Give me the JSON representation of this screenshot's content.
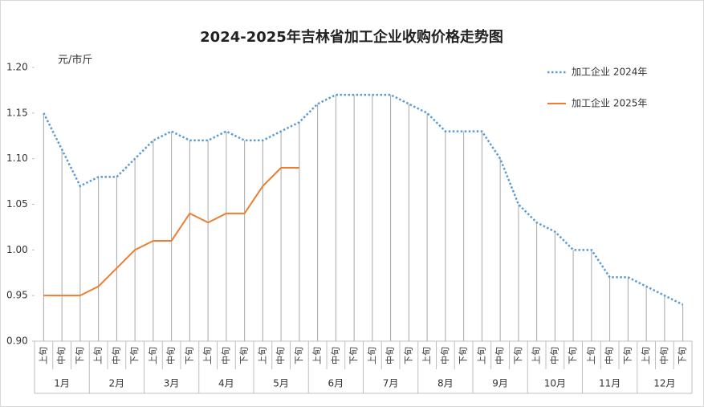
{
  "chart_data": {
    "type": "line",
    "title": "2024-2025年吉林省加工企业收购价格走势图",
    "y_label": "元/市斤",
    "categories": [
      "上旬",
      "中旬",
      "下旬",
      "上旬",
      "中旬",
      "下旬",
      "上旬",
      "中旬",
      "下旬",
      "上旬",
      "中旬",
      "下旬",
      "上旬",
      "中旬",
      "下旬",
      "上旬",
      "中旬",
      "下旬",
      "上旬",
      "中旬",
      "下旬",
      "上旬",
      "中旬",
      "下旬",
      "上旬",
      "中旬",
      "下旬",
      "上旬",
      "中旬",
      "下旬",
      "上旬",
      "中旬",
      "下旬",
      "上旬",
      "中旬",
      "下旬"
    ],
    "groups": [
      "1月",
      "2月",
      "3月",
      "4月",
      "5月",
      "6月",
      "7月",
      "8月",
      "9月",
      "10月",
      "11月",
      "12月"
    ],
    "series": [
      {
        "name": "加工企业 2024年",
        "color": "#5b9bd5",
        "style": "dotted",
        "values": [
          1.15,
          1.11,
          1.07,
          1.08,
          1.08,
          1.1,
          1.12,
          1.13,
          1.12,
          1.12,
          1.13,
          1.12,
          1.12,
          1.13,
          1.14,
          1.16,
          1.17,
          1.17,
          1.17,
          1.17,
          1.16,
          1.15,
          1.13,
          1.13,
          1.13,
          1.1,
          1.05,
          1.03,
          1.02,
          1.0,
          1.0,
          0.97,
          0.97,
          0.96,
          0.95,
          0.94
        ]
      },
      {
        "name": "加工企业 2025年",
        "color": "#ed7d31",
        "style": "solid",
        "values": [
          0.95,
          0.95,
          0.95,
          0.96,
          0.98,
          1.0,
          1.01,
          1.01,
          1.04,
          1.03,
          1.04,
          1.04,
          1.07,
          1.09,
          1.09,
          null,
          null,
          null,
          null,
          null,
          null,
          null,
          null,
          null,
          null,
          null,
          null,
          null,
          null,
          null,
          null,
          null,
          null,
          null,
          null,
          null
        ]
      }
    ],
    "ylim": [
      0.9,
      1.2
    ],
    "yticks": [
      {
        "value": 0.9,
        "label": "0.90"
      },
      {
        "value": 0.95,
        "label": "0.95"
      },
      {
        "value": 1.0,
        "label": "1.00"
      },
      {
        "value": 1.05,
        "label": "1.05"
      },
      {
        "value": 1.1,
        "label": "1.10"
      },
      {
        "value": 1.15,
        "label": "1.15"
      },
      {
        "value": 1.2,
        "label": "1.20"
      }
    ],
    "drop_lines": true,
    "legend": "top-right"
  }
}
